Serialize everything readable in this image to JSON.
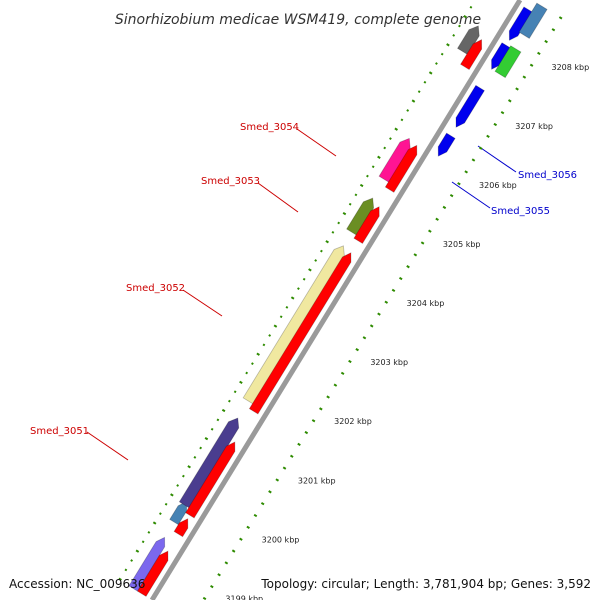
{
  "title": "Sinorhizobium medicae WSM419, complete genome",
  "footer": {
    "accession": "Accession: NC_009636",
    "topology": "Topology: circular; Length: 3,781,904 bp; Genes: 3,592"
  },
  "ticks": [
    "3199 kbp",
    "3200 kbp",
    "3201 kbp",
    "3202 kbp",
    "3203 kbp",
    "3204 kbp",
    "3205 kbp",
    "3206 kbp",
    "3207 kbp",
    "3208 kbp"
  ],
  "gene_labels": [
    {
      "text": "Smed_3051",
      "color": "#cc0000",
      "strand": "forward"
    },
    {
      "text": "Smed_3052",
      "color": "#cc0000",
      "strand": "forward"
    },
    {
      "text": "Smed_3053",
      "color": "#cc0000",
      "strand": "forward"
    },
    {
      "text": "Smed_3054",
      "color": "#cc0000",
      "strand": "forward"
    },
    {
      "text": "Smed_3055",
      "color": "#0000cc",
      "strand": "reverse"
    },
    {
      "text": "Smed_3056",
      "color": "#0000cc",
      "strand": "reverse"
    }
  ],
  "gene_colors": {
    "cds_forward": "#ff0000",
    "cds_reverse": "#0000ee",
    "Smed_3051": "#4a3d8f",
    "Smed_3052": "#f0e8a0",
    "Smed_3053": "#6b8e23",
    "Smed_3054": "#ff1493",
    "other_gray": "#666666",
    "other_lightblue": "#4682b4",
    "other_green": "#33cc33",
    "other_purple": "#7b68ee",
    "backbone": "#999999",
    "gc_dots": "#2e8b00"
  }
}
